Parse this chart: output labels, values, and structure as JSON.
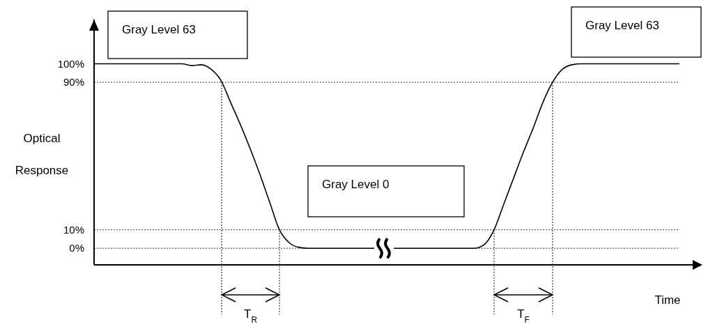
{
  "chart_data": {
    "type": "line",
    "xlabel": "Time",
    "ylabel": "Optical Response",
    "categories": [
      null,
      null,
      null,
      null,
      null,
      null,
      null,
      null,
      null,
      null,
      null,
      null,
      null,
      null,
      null,
      null,
      null,
      null,
      null,
      null,
      null,
      null,
      null,
      null,
      null,
      null,
      null,
      null,
      null,
      null,
      null,
      null,
      null,
      null,
      null,
      null,
      null,
      null,
      null,
      null,
      null,
      null,
      null,
      null,
      null,
      null,
      null,
      null,
      null,
      null,
      null,
      null,
      null,
      null,
      null,
      null,
      null,
      null,
      null,
      null,
      null
    ],
    "series": [
      {
        "color": "#000000",
        "values": [
          100,
          100,
          100,
          100,
          100,
          100,
          100,
          100,
          100,
          100,
          99,
          99.5,
          97,
          91,
          79,
          67,
          54,
          40,
          25,
          10,
          3,
          0.5,
          0,
          0,
          0,
          0,
          0,
          0,
          0,
          0,
          0,
          0,
          0,
          0,
          0,
          0,
          0,
          0,
          0,
          0,
          2,
          10,
          24,
          38,
          52,
          65,
          79,
          90,
          97,
          99.5,
          100,
          100,
          100,
          100,
          100,
          100,
          100,
          100,
          100,
          100,
          100
        ]
      }
    ],
    "ylim": [
      -9,
      124
    ],
    "yticks": [
      {
        "value": 0,
        "label": "0%"
      },
      {
        "value": 10,
        "label": "10%"
      },
      {
        "value": 90,
        "label": "90%"
      },
      {
        "value": 100,
        "label": "100%"
      }
    ],
    "tick_labels": "y",
    "ref_lines": [
      {
        "axis": "y",
        "value": 90,
        "line_style": "dotted"
      },
      {
        "axis": "y",
        "value": 10,
        "line_style": "dotted"
      },
      {
        "axis": "y",
        "value": 0,
        "line_style": "dotted"
      }
    ],
    "annotations": [
      "Gray Level 63",
      "Gray Level 0",
      "Gray Level 63",
      "T$_{R}$",
      "T$_{F}$"
    ]
  }
}
